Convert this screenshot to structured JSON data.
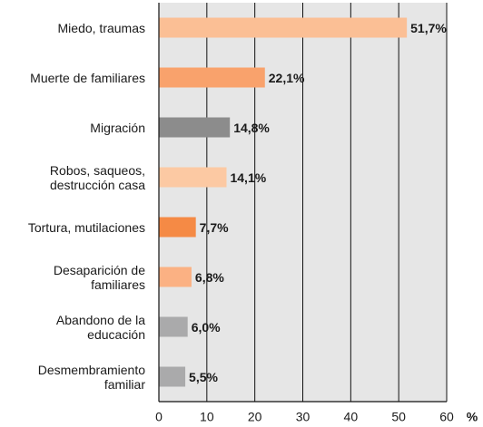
{
  "chart_data": {
    "type": "bar",
    "orientation": "horizontal",
    "categories": [
      "Miedo, traumas",
      "Muerte de familiares",
      "Migración",
      "Robos, saqueos,\ndestrucción casa",
      "Tortura, mutilaciones",
      "Desaparición de\nfamiliares",
      "Abandono de la\neducación",
      "Desmembramiento\nfamiliar"
    ],
    "values": [
      51.7,
      22.1,
      14.8,
      14.1,
      7.7,
      6.8,
      6.0,
      5.5
    ],
    "value_labels": [
      "51,7%",
      "22,1%",
      "14,8%",
      "14,1%",
      "7,7%",
      "6,8%",
      "6,0%",
      "5,5%"
    ],
    "colors": [
      "#fbbf95",
      "#f9a26c",
      "#8c8c8c",
      "#fcc9a3",
      "#f58a45",
      "#fbb183",
      "#aaaaab",
      "#aaaaab"
    ],
    "xlabel": "%",
    "xlim": [
      0,
      60
    ],
    "xticks": [
      0,
      10,
      20,
      30,
      40,
      50,
      60
    ],
    "grid": true
  }
}
